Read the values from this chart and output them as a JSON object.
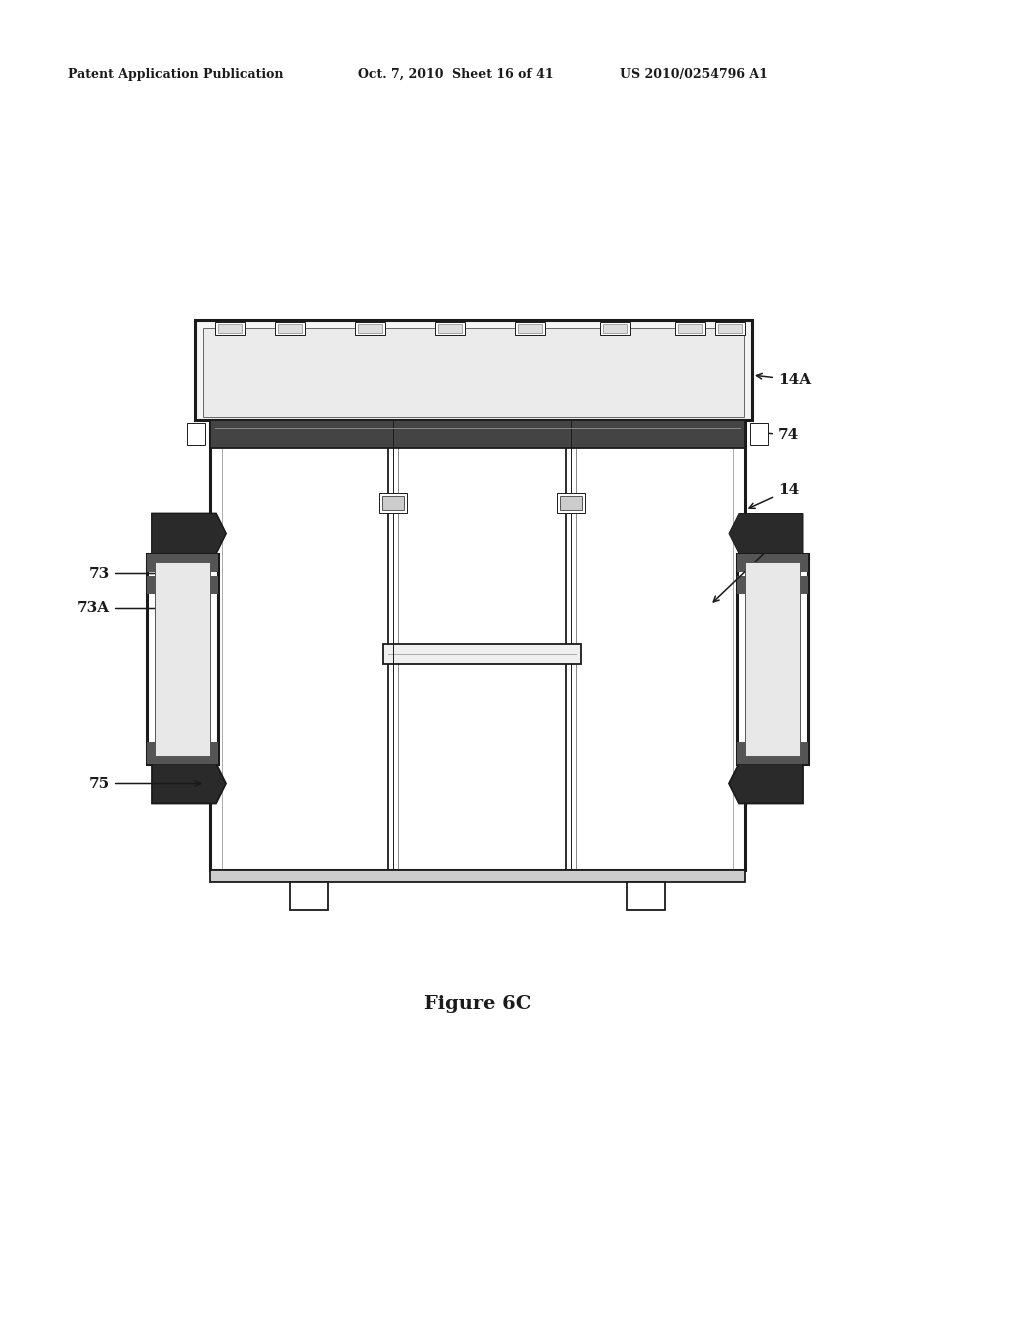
{
  "bg_color": "#ffffff",
  "header_text": "Patent Application Publication",
  "header_date": "Oct. 7, 2010",
  "header_sheet": "Sheet 16 of 41",
  "header_patent": "US 2010/0254796 A1",
  "figure_label": "Figure 6C",
  "lc": "#1a1a1a"
}
